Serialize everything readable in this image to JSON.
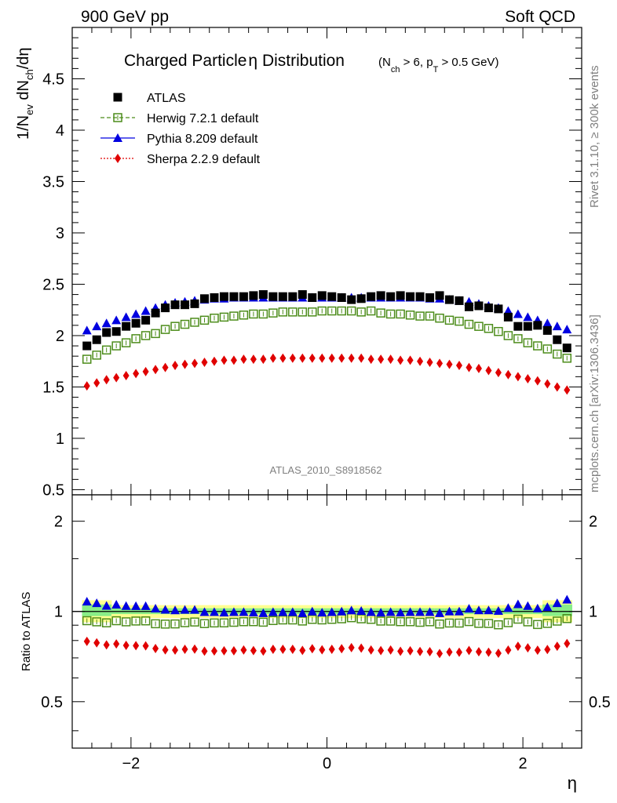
{
  "header": {
    "left": "900 GeV pp",
    "right": "Soft QCD"
  },
  "side_labels": {
    "rivet": "Rivet 3.1.10, ≥ 300k events",
    "mcplots": "mcplots.cern.ch [arXiv:1306.3436]"
  },
  "chart_data": {
    "type": "scatter",
    "title_main": "Charged Particle",
    "title_eta": "η",
    "title_main2": " Distribution",
    "title_cut": "(N_ch > 6, p_T > 0.5 GeV)",
    "analysis_id": "ATLAS_2010_S8918562",
    "xlabel": "η",
    "ylabel": "1/N_ev dN_ch/dη",
    "ratio_ylabel": "Ratio to ATLAS",
    "xlim": [
      -2.6,
      2.6
    ],
    "ylim": [
      0.45,
      5.0
    ],
    "ratio_ylim": [
      0.35,
      2.45
    ],
    "x_ticks": [
      -2,
      0,
      2
    ],
    "x_tick_labels": [
      "−2",
      "0",
      "2"
    ],
    "y_ticks": [
      0.5,
      1,
      1.5,
      2,
      2.5,
      3,
      3.5,
      4,
      4.5
    ],
    "y_tick_labels": [
      "0.5",
      "1",
      "1.5",
      "2",
      "2.5",
      "3",
      "3.5",
      "4",
      "4.5"
    ],
    "ratio_y_ticks": [
      0.5,
      1,
      2
    ],
    "ratio_y_tick_labels": [
      "0.5",
      "1",
      "2"
    ],
    "legend": [
      "ATLAS",
      "Herwig 7.2.1 default",
      "Pythia 8.209 default",
      "Sherpa 2.2.9 default"
    ],
    "legend_position": "top-left",
    "x": [
      -2.45,
      -2.35,
      -2.25,
      -2.15,
      -2.05,
      -1.95,
      -1.85,
      -1.75,
      -1.65,
      -1.55,
      -1.45,
      -1.35,
      -1.25,
      -1.15,
      -1.05,
      -0.95,
      -0.85,
      -0.75,
      -0.65,
      -0.55,
      -0.45,
      -0.35,
      -0.25,
      -0.15,
      -0.05,
      0.05,
      0.15,
      0.25,
      0.35,
      0.45,
      0.55,
      0.65,
      0.75,
      0.85,
      0.95,
      1.05,
      1.15,
      1.25,
      1.35,
      1.45,
      1.55,
      1.65,
      1.75,
      1.85,
      1.95,
      2.05,
      2.15,
      2.25,
      2.35,
      2.45
    ],
    "series": [
      {
        "name": "ATLAS",
        "color": "#000000",
        "values": [
          1.9,
          1.96,
          2.03,
          2.04,
          2.09,
          2.12,
          2.15,
          2.22,
          2.27,
          2.3,
          2.3,
          2.31,
          2.36,
          2.37,
          2.38,
          2.38,
          2.38,
          2.39,
          2.4,
          2.38,
          2.38,
          2.38,
          2.4,
          2.37,
          2.39,
          2.38,
          2.37,
          2.35,
          2.36,
          2.38,
          2.39,
          2.38,
          2.39,
          2.38,
          2.38,
          2.37,
          2.39,
          2.35,
          2.34,
          2.28,
          2.29,
          2.27,
          2.26,
          2.18,
          2.09,
          2.09,
          2.1,
          2.05,
          1.96,
          1.88
        ]
      },
      {
        "name": "Herwig 7.2.1 default",
        "color": "#4c8c1a",
        "values": [
          1.77,
          1.81,
          1.86,
          1.9,
          1.93,
          1.97,
          2.0,
          2.02,
          2.06,
          2.09,
          2.11,
          2.13,
          2.15,
          2.17,
          2.18,
          2.19,
          2.2,
          2.21,
          2.21,
          2.22,
          2.23,
          2.23,
          2.23,
          2.23,
          2.24,
          2.24,
          2.24,
          2.24,
          2.23,
          2.24,
          2.22,
          2.21,
          2.21,
          2.2,
          2.19,
          2.19,
          2.17,
          2.15,
          2.14,
          2.11,
          2.09,
          2.07,
          2.04,
          2.0,
          1.97,
          1.93,
          1.9,
          1.87,
          1.82,
          1.78
        ]
      },
      {
        "name": "Pythia 8.209 default",
        "color": "#0000e0",
        "values": [
          2.05,
          2.09,
          2.12,
          2.15,
          2.18,
          2.21,
          2.24,
          2.27,
          2.3,
          2.32,
          2.33,
          2.34,
          2.35,
          2.36,
          2.36,
          2.37,
          2.37,
          2.37,
          2.37,
          2.37,
          2.37,
          2.37,
          2.37,
          2.37,
          2.37,
          2.37,
          2.37,
          2.37,
          2.37,
          2.37,
          2.37,
          2.37,
          2.37,
          2.37,
          2.37,
          2.36,
          2.36,
          2.35,
          2.34,
          2.33,
          2.31,
          2.29,
          2.27,
          2.24,
          2.21,
          2.18,
          2.15,
          2.12,
          2.09,
          2.06
        ]
      },
      {
        "name": "Sherpa 2.2.9 default",
        "color": "#e00000",
        "values": [
          1.51,
          1.54,
          1.57,
          1.59,
          1.61,
          1.63,
          1.65,
          1.67,
          1.69,
          1.71,
          1.72,
          1.73,
          1.74,
          1.75,
          1.76,
          1.76,
          1.77,
          1.77,
          1.77,
          1.78,
          1.78,
          1.78,
          1.78,
          1.78,
          1.78,
          1.78,
          1.78,
          1.78,
          1.78,
          1.77,
          1.77,
          1.77,
          1.76,
          1.76,
          1.75,
          1.74,
          1.73,
          1.72,
          1.71,
          1.69,
          1.68,
          1.66,
          1.64,
          1.62,
          1.6,
          1.58,
          1.56,
          1.53,
          1.5,
          1.47
        ]
      }
    ]
  }
}
